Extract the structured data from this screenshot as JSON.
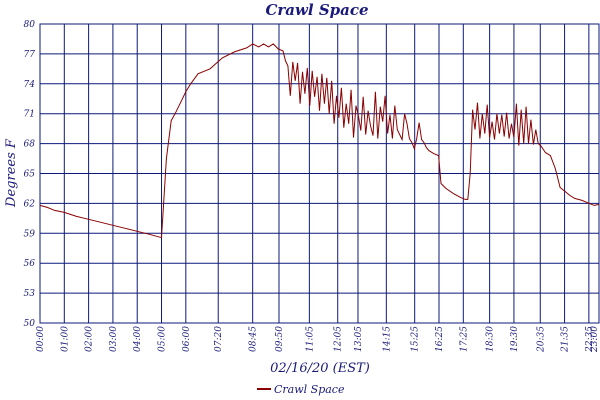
{
  "chart_data": {
    "type": "line",
    "title": "Crawl Space",
    "xlabel": "02/16/20 (EST)",
    "ylabel": "Degrees F",
    "ylim": [
      50,
      80
    ],
    "yticks": [
      50,
      53,
      56,
      59,
      62,
      65,
      68,
      71,
      74,
      77,
      80
    ],
    "ytick_labels": [
      "50",
      "53",
      "56",
      "59",
      "62",
      "65",
      "68",
      "71",
      "74",
      "77",
      "80"
    ],
    "xlim_hours": [
      0,
      23
    ],
    "xticks_hours": [
      0,
      1,
      2,
      3,
      4,
      5,
      6,
      7.3333,
      8.75,
      9.8333,
      11.0833,
      12.25,
      13.0833,
      14.25,
      15.4167,
      16.4167,
      17.4167,
      18.5,
      19.5,
      20.5833,
      21.5833,
      22.5833,
      23
    ],
    "xtick_labels": [
      "00:00",
      "01:00",
      "02:00",
      "03:00",
      "04:00",
      "05:00",
      "06:00",
      "07:20",
      "08:45",
      "09:50",
      "11:05",
      "12:05",
      "13:05",
      "14:15",
      "15:25",
      "16:25",
      "17:25",
      "18:30",
      "19:30",
      "20:35",
      "21:35",
      "22:35",
      "23:00"
    ],
    "grid": true,
    "legend_position": "bottom-center",
    "series": [
      {
        "name": "Crawl Space",
        "color": "#8b0000",
        "x_hours": [
          0.0,
          0.3,
          0.6,
          1.0,
          1.5,
          2.0,
          2.5,
          3.0,
          3.5,
          4.0,
          4.5,
          4.95,
          5.0,
          5.05,
          5.2,
          5.4,
          5.6,
          5.8,
          6.0,
          6.2,
          6.5,
          7.0,
          7.5,
          8.0,
          8.5,
          8.75,
          9.0,
          9.2,
          9.4,
          9.6,
          9.8,
          10.0,
          10.1,
          10.2,
          10.3,
          10.4,
          10.5,
          10.6,
          10.7,
          10.8,
          10.9,
          11.0,
          11.1,
          11.2,
          11.3,
          11.4,
          11.5,
          11.6,
          11.7,
          11.8,
          11.9,
          12.0,
          12.1,
          12.2,
          12.3,
          12.4,
          12.5,
          12.6,
          12.7,
          12.8,
          12.9,
          13.0,
          13.1,
          13.2,
          13.3,
          13.4,
          13.5,
          13.6,
          13.7,
          13.8,
          13.9,
          14.0,
          14.1,
          14.2,
          14.3,
          14.4,
          14.5,
          14.6,
          14.7,
          14.8,
          14.9,
          15.0,
          15.1,
          15.2,
          15.3,
          15.4,
          15.5,
          15.6,
          15.7,
          15.8,
          15.9,
          16.0,
          16.2,
          16.4,
          16.5,
          16.7,
          17.0,
          17.3,
          17.5,
          17.6,
          17.7,
          17.8,
          17.9,
          18.0,
          18.1,
          18.2,
          18.3,
          18.4,
          18.5,
          18.6,
          18.7,
          18.8,
          18.9,
          19.0,
          19.1,
          19.2,
          19.3,
          19.4,
          19.5,
          19.6,
          19.7,
          19.8,
          19.9,
          20.0,
          20.1,
          20.2,
          20.3,
          20.4,
          20.5,
          20.6,
          20.8,
          21.0,
          21.2,
          21.4,
          21.6,
          21.8,
          22.0,
          22.3,
          22.6,
          22.8,
          23.0
        ],
        "y_values": [
          61.8,
          61.6,
          61.3,
          61.1,
          60.7,
          60.4,
          60.1,
          59.8,
          59.5,
          59.2,
          58.9,
          58.6,
          58.6,
          60.5,
          66.5,
          70.3,
          71.2,
          72.2,
          73.2,
          74.0,
          75.0,
          75.5,
          76.6,
          77.2,
          77.6,
          78.0,
          77.7,
          78.0,
          77.7,
          78.0,
          77.5,
          77.3,
          76.3,
          75.8,
          72.8,
          76.2,
          74.3,
          76.1,
          72.0,
          75.2,
          73.0,
          75.6,
          71.8,
          75.3,
          72.7,
          74.7,
          71.3,
          75.0,
          72.0,
          74.6,
          71.0,
          74.3,
          70.0,
          72.8,
          70.6,
          73.6,
          69.6,
          72.0,
          70.0,
          73.4,
          68.6,
          71.8,
          70.8,
          69.3,
          72.7,
          68.9,
          71.3,
          69.8,
          68.8,
          73.2,
          68.5,
          71.7,
          70.2,
          72.8,
          69.0,
          70.9,
          68.5,
          71.8,
          69.4,
          68.9,
          68.4,
          71.0,
          70.0,
          68.5,
          68.1,
          67.5,
          68.5,
          70.1,
          68.4,
          68.1,
          67.6,
          67.3,
          67.0,
          66.8,
          64.0,
          63.5,
          63.0,
          62.6,
          62.4,
          62.4,
          65.0,
          71.4,
          69.4,
          72.1,
          68.5,
          71.0,
          69.0,
          71.9,
          68.6,
          70.2,
          68.4,
          71.0,
          69.0,
          70.9,
          68.7,
          71.1,
          68.5,
          70.0,
          68.6,
          72.0,
          67.8,
          71.4,
          68.0,
          71.7,
          68.0,
          70.4,
          67.9,
          69.4,
          68.0,
          67.8,
          67.1,
          66.8,
          65.5,
          63.6,
          63.2,
          62.8,
          62.5,
          62.3,
          62.0,
          61.8,
          61.9
        ]
      }
    ]
  }
}
